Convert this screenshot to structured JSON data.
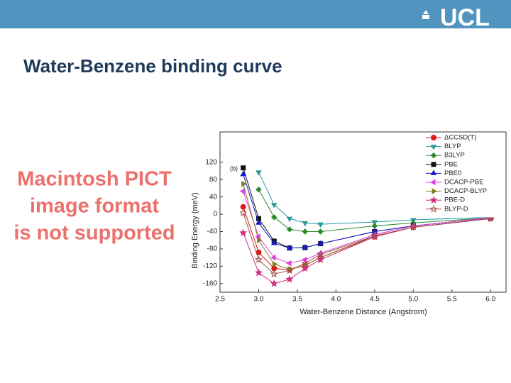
{
  "header": {
    "logo": "UCL"
  },
  "slide_title": "Water-Benzene binding curve",
  "placeholder": {
    "lines": [
      "Macintosh PICT",
      "image format",
      "is not supported"
    ]
  },
  "chart_data": {
    "type": "line",
    "annotation": "(b)",
    "x_label": "Water-Benzene Distance (Angstrom)",
    "y_label": "Binding Energy (meV)",
    "x": [
      2.8,
      3.0,
      3.2,
      3.4,
      3.6,
      3.8,
      4.5,
      5.0,
      6.0
    ],
    "xlim": [
      2.5,
      6.2
    ],
    "xticks": [
      2.5,
      {
        "value": 3,
        "label": "3.0"
      },
      3.5,
      {
        "value": 4,
        "label": "4.0"
      },
      4.5,
      {
        "value": 5,
        "label": "5.0"
      },
      5.5,
      {
        "value": 6,
        "label": "6.0"
      }
    ],
    "ylim": [
      -180,
      190
    ],
    "yticks": [
      -160,
      -120,
      -80,
      -40,
      0,
      40,
      80,
      120
    ],
    "legend": "top-right",
    "series": [
      {
        "name": "ΔCCSD(T)",
        "color": "#e01818",
        "marker": "circle",
        "values": [
          17,
          -88,
          -125,
          -128,
          -118,
          -100,
          -52,
          -30,
          -10
        ]
      },
      {
        "name": "BLYP",
        "color": "#2a9a9a",
        "marker": "down",
        "values": [
          null,
          97,
          22,
          -10,
          -20,
          -23,
          -18,
          -13,
          -7
        ]
      },
      {
        "name": "B3LYP",
        "color": "#2a8a2a",
        "marker": "diamond",
        "values": [
          null,
          57,
          -7,
          -35,
          -40,
          -40,
          -27,
          -20,
          -8
        ]
      },
      {
        "name": "PBE",
        "color": "#111111",
        "marker": "square",
        "values": [
          107,
          -10,
          -62,
          -78,
          -77,
          -68,
          -40,
          -27,
          -8
        ]
      },
      {
        "name": "PBE0",
        "color": "#1a1acc",
        "marker": "up",
        "values": [
          92,
          -20,
          -67,
          -78,
          -77,
          -68,
          -40,
          -27,
          -8
        ]
      },
      {
        "name": "DCACP-PBE",
        "color": "#e040e0",
        "marker": "left",
        "values": [
          53,
          -52,
          -100,
          -113,
          -105,
          -90,
          -47,
          -27,
          -8
        ]
      },
      {
        "name": "DCACP-BLYP",
        "color": "#808020",
        "marker": "right",
        "values": [
          70,
          -60,
          -115,
          -127,
          -118,
          -100,
          -50,
          -30,
          -10
        ]
      },
      {
        "name": "PBE-D",
        "color": "#d03080",
        "marker": "star",
        "values": [
          -43,
          -135,
          -160,
          -150,
          -125,
          -105,
          -52,
          -30,
          -10
        ]
      },
      {
        "name": "BLYP-D",
        "color": "#a05050",
        "marker": "openstar",
        "values": [
          3,
          -105,
          -138,
          -130,
          -113,
          -93,
          -50,
          -30,
          -10
        ]
      }
    ]
  }
}
